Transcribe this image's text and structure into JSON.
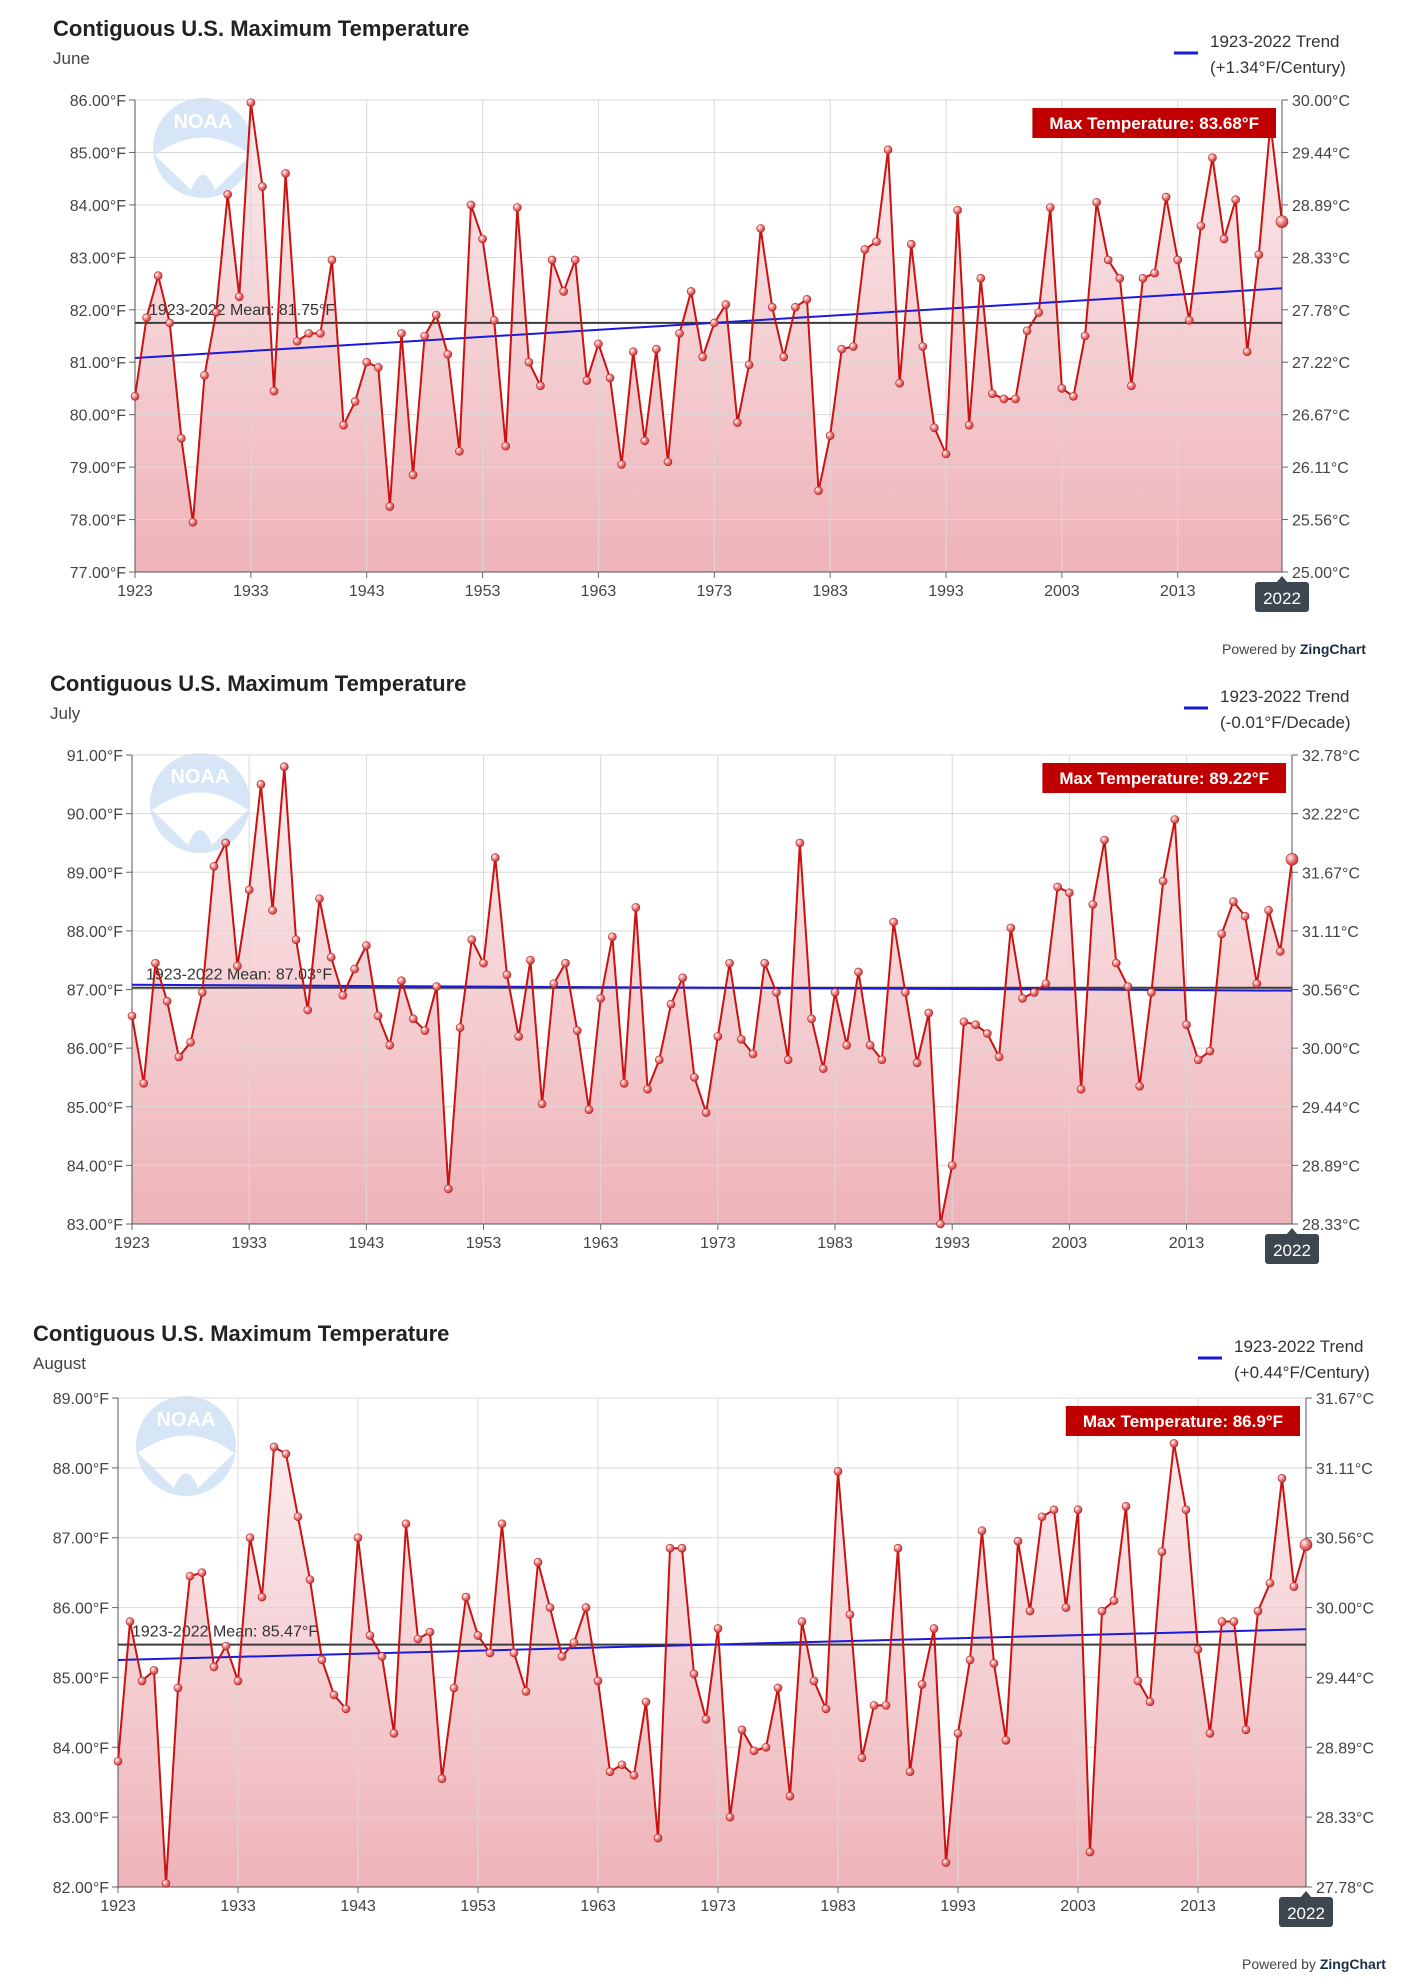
{
  "powered_by": {
    "prefix": "Powered by",
    "brand": "ZingChart"
  },
  "chart_data": [
    {
      "type": "line",
      "title": "Contiguous U.S. Maximum Temperature",
      "subtitle": "June",
      "legend": {
        "label": "1923-2022 Trend",
        "sub": "(+1.34°F/Century)",
        "position": "top-right"
      },
      "badge": "Max Temperature: 83.68°F",
      "mean_label": "1923-2022 Mean: 81.75°F",
      "mean": 81.75,
      "trend": [
        81.08,
        82.41
      ],
      "ylim": [
        77,
        86
      ],
      "y_ticks": [
        {
          "v": 86,
          "f": "86.00°F",
          "c": "30.00°C"
        },
        {
          "v": 85,
          "f": "85.00°F",
          "c": "29.44°C"
        },
        {
          "v": 84,
          "f": "84.00°F",
          "c": "28.89°C"
        },
        {
          "v": 83,
          "f": "83.00°F",
          "c": "28.33°C"
        },
        {
          "v": 82,
          "f": "82.00°F",
          "c": "27.78°C"
        },
        {
          "v": 81,
          "f": "81.00°F",
          "c": "27.22°C"
        },
        {
          "v": 80,
          "f": "80.00°F",
          "c": "26.67°C"
        },
        {
          "v": 79,
          "f": "79.00°F",
          "c": "26.11°C"
        },
        {
          "v": 78,
          "f": "78.00°F",
          "c": "25.56°C"
        },
        {
          "v": 77,
          "f": "77.00°F",
          "c": "25.00°C"
        }
      ],
      "x_start": 1923,
      "x_ticks": [
        "1923",
        "1933",
        "1943",
        "1953",
        "1963",
        "1973",
        "1983",
        "1993",
        "2003",
        "2013"
      ],
      "x_last": "2022",
      "values": [
        80.35,
        81.85,
        82.65,
        81.75,
        79.55,
        77.95,
        80.75,
        81.95,
        84.2,
        82.25,
        85.95,
        84.35,
        80.45,
        84.6,
        81.4,
        81.55,
        81.55,
        82.95,
        79.8,
        80.25,
        81.0,
        80.9,
        78.25,
        81.55,
        78.85,
        81.5,
        81.9,
        81.15,
        79.3,
        84.0,
        83.35,
        81.8,
        79.4,
        83.95,
        81.0,
        80.55,
        82.95,
        82.35,
        82.95,
        80.65,
        81.35,
        80.7,
        79.05,
        81.2,
        79.5,
        81.25,
        79.1,
        81.55,
        82.35,
        81.1,
        81.75,
        82.1,
        79.85,
        80.95,
        83.55,
        82.05,
        81.1,
        82.05,
        82.2,
        78.55,
        79.6,
        81.25,
        81.3,
        83.15,
        83.3,
        85.05,
        80.6,
        83.25,
        81.3,
        79.75,
        79.25,
        83.9,
        79.8,
        82.6,
        80.4,
        80.3,
        80.3,
        81.6,
        81.95,
        83.95,
        80.5,
        80.35,
        81.5,
        84.05,
        82.95,
        82.6,
        80.55,
        82.6,
        82.7,
        84.15,
        82.95,
        81.8,
        83.6,
        84.9,
        83.35,
        84.1,
        81.2,
        83.05,
        85.55,
        83.68
      ]
    },
    {
      "type": "line",
      "title": "Contiguous U.S. Maximum Temperature",
      "subtitle": "July",
      "legend": {
        "label": "1923-2022 Trend",
        "sub": "(-0.01°F/Decade)",
        "position": "top-right"
      },
      "badge": "Max Temperature: 89.22°F",
      "mean_label": "1923-2022 Mean: 87.03°F",
      "mean": 87.03,
      "trend": [
        87.08,
        86.98
      ],
      "ylim": [
        83,
        91
      ],
      "y_ticks": [
        {
          "v": 91,
          "f": "91.00°F",
          "c": "32.78°C"
        },
        {
          "v": 90,
          "f": "90.00°F",
          "c": "32.22°C"
        },
        {
          "v": 89,
          "f": "89.00°F",
          "c": "31.67°C"
        },
        {
          "v": 88,
          "f": "88.00°F",
          "c": "31.11°C"
        },
        {
          "v": 87,
          "f": "87.00°F",
          "c": "30.56°C"
        },
        {
          "v": 86,
          "f": "86.00°F",
          "c": "30.00°C"
        },
        {
          "v": 85,
          "f": "85.00°F",
          "c": "29.44°C"
        },
        {
          "v": 84,
          "f": "84.00°F",
          "c": "28.89°C"
        },
        {
          "v": 83,
          "f": "83.00°F",
          "c": "28.33°C"
        }
      ],
      "x_start": 1923,
      "x_ticks": [
        "1923",
        "1933",
        "1943",
        "1953",
        "1963",
        "1973",
        "1983",
        "1993",
        "2003",
        "2013"
      ],
      "x_last": "2022",
      "values": [
        86.55,
        85.4,
        87.45,
        86.8,
        85.85,
        86.1,
        86.95,
        89.1,
        89.5,
        87.4,
        88.7,
        90.5,
        88.35,
        90.8,
        87.85,
        86.65,
        88.55,
        87.55,
        86.9,
        87.35,
        87.75,
        86.55,
        86.05,
        87.15,
        86.5,
        86.3,
        87.05,
        83.6,
        86.35,
        87.85,
        87.45,
        89.25,
        87.25,
        86.2,
        87.5,
        85.05,
        87.1,
        87.45,
        86.3,
        84.95,
        86.85,
        87.9,
        85.4,
        88.4,
        85.3,
        85.8,
        86.75,
        87.2,
        85.5,
        84.9,
        86.2,
        87.45,
        86.15,
        85.9,
        87.45,
        86.95,
        85.8,
        89.5,
        86.5,
        85.65,
        86.95,
        86.05,
        87.3,
        86.05,
        85.8,
        88.15,
        86.95,
        85.75,
        86.6,
        83.0,
        84.0,
        86.45,
        86.4,
        86.25,
        85.85,
        88.05,
        86.85,
        86.95,
        87.1,
        88.75,
        88.65,
        85.3,
        88.45,
        89.55,
        87.45,
        87.05,
        85.35,
        86.95,
        88.85,
        89.9,
        86.4,
        85.8,
        85.95,
        87.95,
        88.5,
        88.25,
        87.1,
        88.35,
        87.65,
        89.22
      ]
    },
    {
      "type": "line",
      "title": "Contiguous U.S. Maximum Temperature",
      "subtitle": "August",
      "legend": {
        "label": "1923-2022 Trend",
        "sub": "(+0.44°F/Century)",
        "position": "top-right"
      },
      "badge": "Max Temperature: 86.9°F",
      "mean_label": "1923-2022 Mean: 85.47°F",
      "mean": 85.47,
      "trend": [
        85.25,
        85.69
      ],
      "ylim": [
        82,
        89
      ],
      "y_ticks": [
        {
          "v": 89,
          "f": "89.00°F",
          "c": "31.67°C"
        },
        {
          "v": 88,
          "f": "88.00°F",
          "c": "31.11°C"
        },
        {
          "v": 87,
          "f": "87.00°F",
          "c": "30.56°C"
        },
        {
          "v": 86,
          "f": "86.00°F",
          "c": "30.00°C"
        },
        {
          "v": 85,
          "f": "85.00°F",
          "c": "29.44°C"
        },
        {
          "v": 84,
          "f": "84.00°F",
          "c": "28.89°C"
        },
        {
          "v": 83,
          "f": "83.00°F",
          "c": "28.33°C"
        },
        {
          "v": 82,
          "f": "82.00°F",
          "c": "27.78°C"
        }
      ],
      "x_start": 1923,
      "x_ticks": [
        "1923",
        "1933",
        "1943",
        "1953",
        "1963",
        "1973",
        "1983",
        "1993",
        "2003",
        "2013"
      ],
      "x_last": "2022",
      "values": [
        83.8,
        85.8,
        84.95,
        85.1,
        82.05,
        84.85,
        86.45,
        86.5,
        85.15,
        85.45,
        84.95,
        87.0,
        86.15,
        88.3,
        88.2,
        87.3,
        86.4,
        85.25,
        84.75,
        84.55,
        87.0,
        85.6,
        85.3,
        84.2,
        87.2,
        85.55,
        85.65,
        83.55,
        84.85,
        86.15,
        85.6,
        85.35,
        87.2,
        85.35,
        84.8,
        86.65,
        86.0,
        85.3,
        85.5,
        86.0,
        84.95,
        83.65,
        83.75,
        83.6,
        84.65,
        82.7,
        86.85,
        86.85,
        85.05,
        84.4,
        85.7,
        83.0,
        84.25,
        83.95,
        84.0,
        84.85,
        83.3,
        85.8,
        84.95,
        84.55,
        87.95,
        85.9,
        83.85,
        84.6,
        84.6,
        86.85,
        83.65,
        84.9,
        85.7,
        82.35,
        84.2,
        85.25,
        87.1,
        85.2,
        84.1,
        86.95,
        85.95,
        87.3,
        87.4,
        86.0,
        87.4,
        82.5,
        85.95,
        86.1,
        87.45,
        84.95,
        84.65,
        86.8,
        88.35,
        87.4,
        85.4,
        84.2,
        85.8,
        85.8,
        84.25,
        85.95,
        86.35,
        87.85,
        86.3,
        86.9
      ]
    }
  ]
}
